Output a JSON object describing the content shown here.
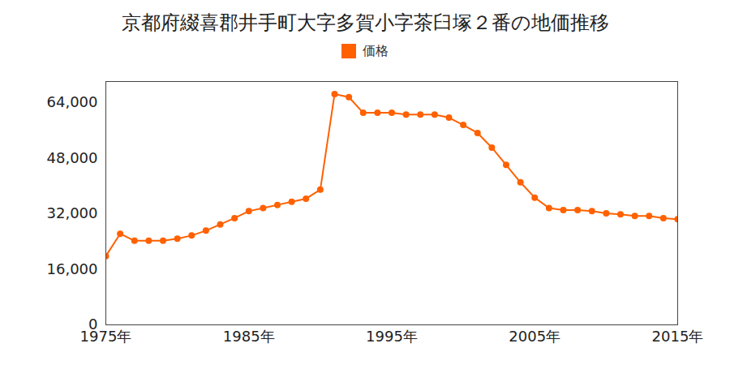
{
  "chart_data": {
    "type": "line",
    "title": "京都府綴喜郡井手町大字多賀小字茶臼塚２番の地価推移",
    "x": [
      1975,
      1976,
      1977,
      1978,
      1979,
      1980,
      1981,
      1982,
      1983,
      1984,
      1985,
      1986,
      1987,
      1988,
      1989,
      1990,
      1991,
      1992,
      1993,
      1994,
      1995,
      1996,
      1997,
      1998,
      1999,
      2000,
      2001,
      2002,
      2003,
      2004,
      2005,
      2006,
      2007,
      2008,
      2009,
      2010,
      2011,
      2012,
      2013,
      2014,
      2015
    ],
    "series": [
      {
        "name": "価格",
        "color": "#ff6100",
        "marker": "circle",
        "values": [
          19800,
          26200,
          24200,
          24200,
          24200,
          24800,
          25700,
          27100,
          28900,
          30700,
          32700,
          33600,
          34500,
          35400,
          36300,
          38900,
          66400,
          65500,
          61000,
          61000,
          61000,
          60500,
          60500,
          60500,
          59600,
          57500,
          55200,
          51000,
          46000,
          41000,
          36600,
          33600,
          33000,
          33000,
          32700,
          32100,
          31800,
          31300,
          31300,
          30700,
          30400
        ]
      }
    ],
    "xlim": [
      1975,
      2015
    ],
    "xticks": [
      {
        "value": 1975,
        "label": "1975年"
      },
      {
        "value": 1985,
        "label": "1985年"
      },
      {
        "value": 1995,
        "label": "1995年"
      },
      {
        "value": 2005,
        "label": "2005年"
      },
      {
        "value": 2015,
        "label": "2015年"
      }
    ],
    "ylim": [
      0,
      70000
    ],
    "yticks": [
      0,
      {
        "value": 16000,
        "label": "16,000"
      },
      {
        "value": 32000,
        "label": "32,000"
      },
      {
        "value": 48000,
        "label": "48,000"
      },
      {
        "value": 64000,
        "label": "64,000"
      }
    ],
    "grid": false,
    "legend": "top"
  }
}
